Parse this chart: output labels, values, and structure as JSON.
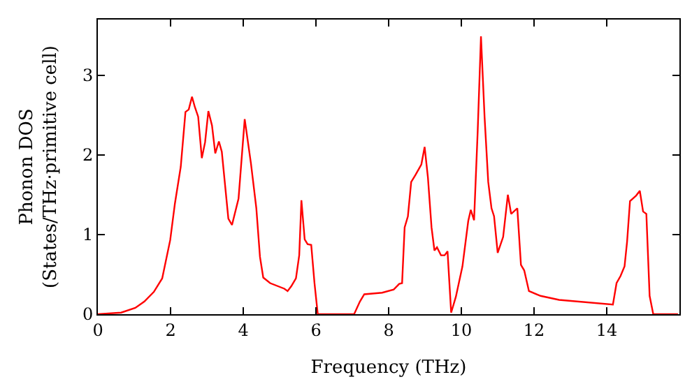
{
  "chart_data": {
    "type": "line",
    "xlabel": "Frequency (THz)",
    "ylabel": "Phonon DOS\n(States/THz·primitive cell)",
    "xlim": [
      0,
      16
    ],
    "ylim": [
      0,
      3.7
    ],
    "xticks": [
      0,
      2,
      4,
      6,
      8,
      10,
      12,
      14
    ],
    "yticks": [
      0,
      1,
      2,
      3
    ],
    "marker": "none",
    "line_style": "solid",
    "series": [
      {
        "color": "#ff0000",
        "x": [
          0,
          0.64,
          1.03,
          1.28,
          1.54,
          1.77,
          1.99,
          2.12,
          2.28,
          2.41,
          2.5,
          2.59,
          2.67,
          2.76,
          2.86,
          2.95,
          3.04,
          3.14,
          3.23,
          3.33,
          3.41,
          3.59,
          3.69,
          3.87,
          4.04,
          4.21,
          4.36,
          4.46,
          4.55,
          4.74,
          5.13,
          5.22,
          5.32,
          5.45,
          5.54,
          5.6,
          5.69,
          5.77,
          5.87,
          5.96,
          6.05,
          7.05,
          7.21,
          7.33,
          7.82,
          8.14,
          8.29,
          8.37,
          8.44,
          8.53,
          8.62,
          8.74,
          8.9,
          8.99,
          9.08,
          9.18,
          9.26,
          9.33,
          9.44,
          9.54,
          9.62,
          9.72,
          9.85,
          10.03,
          10.19,
          10.26,
          10.35,
          10.45,
          10.54,
          10.64,
          10.74,
          10.83,
          10.9,
          11.0,
          11.15,
          11.28,
          11.37,
          11.54,
          11.64,
          11.73,
          11.86,
          12.18,
          12.69,
          14.17,
          14.27,
          14.38,
          14.49,
          14.56,
          14.64,
          14.81,
          14.91,
          15.0,
          15.09,
          15.18,
          15.28,
          15.96
        ],
        "values": [
          0,
          0.02,
          0.08,
          0.16,
          0.28,
          0.45,
          0.93,
          1.39,
          1.85,
          2.54,
          2.57,
          2.73,
          2.6,
          2.48,
          1.96,
          2.16,
          2.55,
          2.37,
          2.02,
          2.17,
          2.04,
          1.2,
          1.12,
          1.45,
          2.45,
          1.9,
          1.33,
          0.72,
          0.46,
          0.39,
          0.32,
          0.29,
          0.35,
          0.45,
          0.74,
          1.43,
          0.94,
          0.88,
          0.87,
          0.39,
          0,
          0,
          0.16,
          0.25,
          0.27,
          0.31,
          0.38,
          0.39,
          1.09,
          1.23,
          1.66,
          1.75,
          1.88,
          2.1,
          1.72,
          1.09,
          0.8,
          0.84,
          0.74,
          0.74,
          0.79,
          0.02,
          0.22,
          0.6,
          1.17,
          1.31,
          1.18,
          2.3,
          3.49,
          2.47,
          1.66,
          1.33,
          1.23,
          0.77,
          0.97,
          1.5,
          1.26,
          1.33,
          0.62,
          0.55,
          0.29,
          0.23,
          0.18,
          0.12,
          0.39,
          0.48,
          0.6,
          0.91,
          1.42,
          1.49,
          1.55,
          1.29,
          1.26,
          0.23,
          0,
          0
        ]
      }
    ]
  }
}
